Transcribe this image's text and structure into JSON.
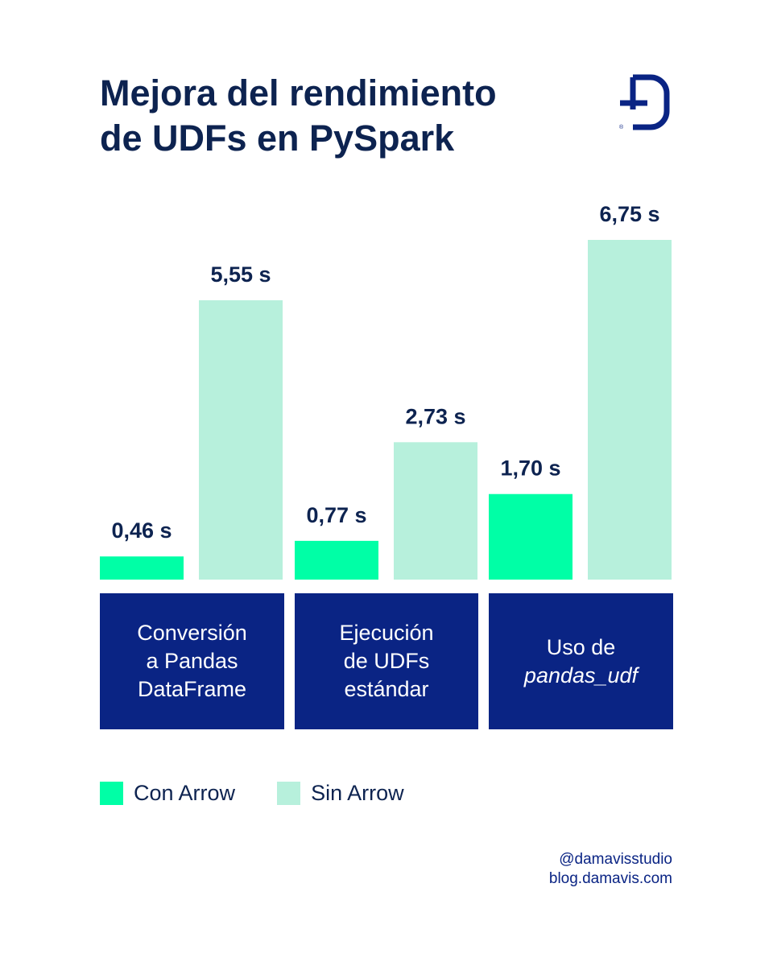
{
  "title_lines": [
    "Mejora del rendimiento",
    "de UDFs en PySpark"
  ],
  "logo": {
    "icon": "damavis-logo-icon",
    "mark": "®"
  },
  "colors": {
    "con": "#00ffa6",
    "sin": "#b7f0dc",
    "label_bg": "#0a2484",
    "text": "#0d2350"
  },
  "chart_data": {
    "type": "bar",
    "title": "Mejora del rendimiento de UDFs en PySpark",
    "unit": "s",
    "categories": [
      {
        "lines": [
          "Conversión",
          "a Pandas",
          "DataFrame"
        ]
      },
      {
        "lines": [
          "Ejecución",
          "de UDFs",
          "estándar"
        ]
      },
      {
        "lines": [
          "Uso de",
          "pandas_udf"
        ],
        "italic_line": 1
      }
    ],
    "series": [
      {
        "name": "Con Arrow",
        "color": "#00ffa6",
        "values": [
          0.46,
          0.77,
          1.7
        ],
        "labels": [
          "0,46 s",
          "0,77 s",
          "1,70 s"
        ]
      },
      {
        "name": "Sin Arrow",
        "color": "#b7f0dc",
        "values": [
          5.55,
          2.73,
          6.75
        ],
        "labels": [
          "5,55 s",
          "2,73 s",
          "6,75 s"
        ]
      }
    ],
    "ylim": [
      0,
      6.75
    ],
    "legend_position": "bottom-left"
  },
  "footer": {
    "handle": "@damavisstudio",
    "site": "blog.damavis.com"
  }
}
